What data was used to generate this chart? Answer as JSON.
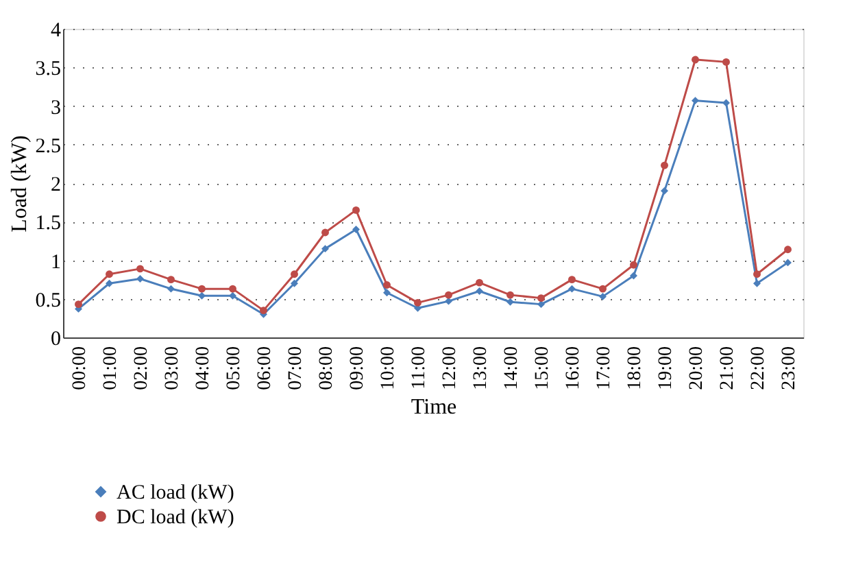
{
  "chart_data": {
    "type": "line",
    "xlabel": "Time",
    "ylabel": "Load (kW)",
    "categories": [
      "00:00",
      "01:00",
      "02:00",
      "03:00",
      "04:00",
      "05:00",
      "06:00",
      "07:00",
      "08:00",
      "09:00",
      "10:00",
      "11:00",
      "12:00",
      "13:00",
      "14:00",
      "15:00",
      "16:00",
      "17:00",
      "18:00",
      "19:00",
      "20:00",
      "21:00",
      "22:00",
      "23:00"
    ],
    "series": [
      {
        "name": "AC load (kW)",
        "color": "#4a7ebb",
        "marker": "diamond",
        "values": [
          0.37,
          0.7,
          0.76,
          0.63,
          0.54,
          0.54,
          0.3,
          0.7,
          1.15,
          1.4,
          0.58,
          0.38,
          0.47,
          0.6,
          0.46,
          0.43,
          0.63,
          0.53,
          0.8,
          1.9,
          3.07,
          3.04,
          0.7,
          0.97
        ]
      },
      {
        "name": "DC load (kW)",
        "color": "#be4b48",
        "marker": "circle",
        "values": [
          0.43,
          0.82,
          0.89,
          0.75,
          0.63,
          0.63,
          0.35,
          0.82,
          1.36,
          1.65,
          0.68,
          0.45,
          0.55,
          0.71,
          0.55,
          0.51,
          0.75,
          0.63,
          0.94,
          2.23,
          3.6,
          3.57,
          0.82,
          1.14
        ]
      }
    ],
    "ylim": [
      0,
      4
    ],
    "yticks": [
      0,
      0.5,
      1,
      1.5,
      2,
      2.5,
      3,
      3.5,
      4
    ],
    "grid": "y",
    "legend": "bottom left",
    "line_style": "solid"
  }
}
